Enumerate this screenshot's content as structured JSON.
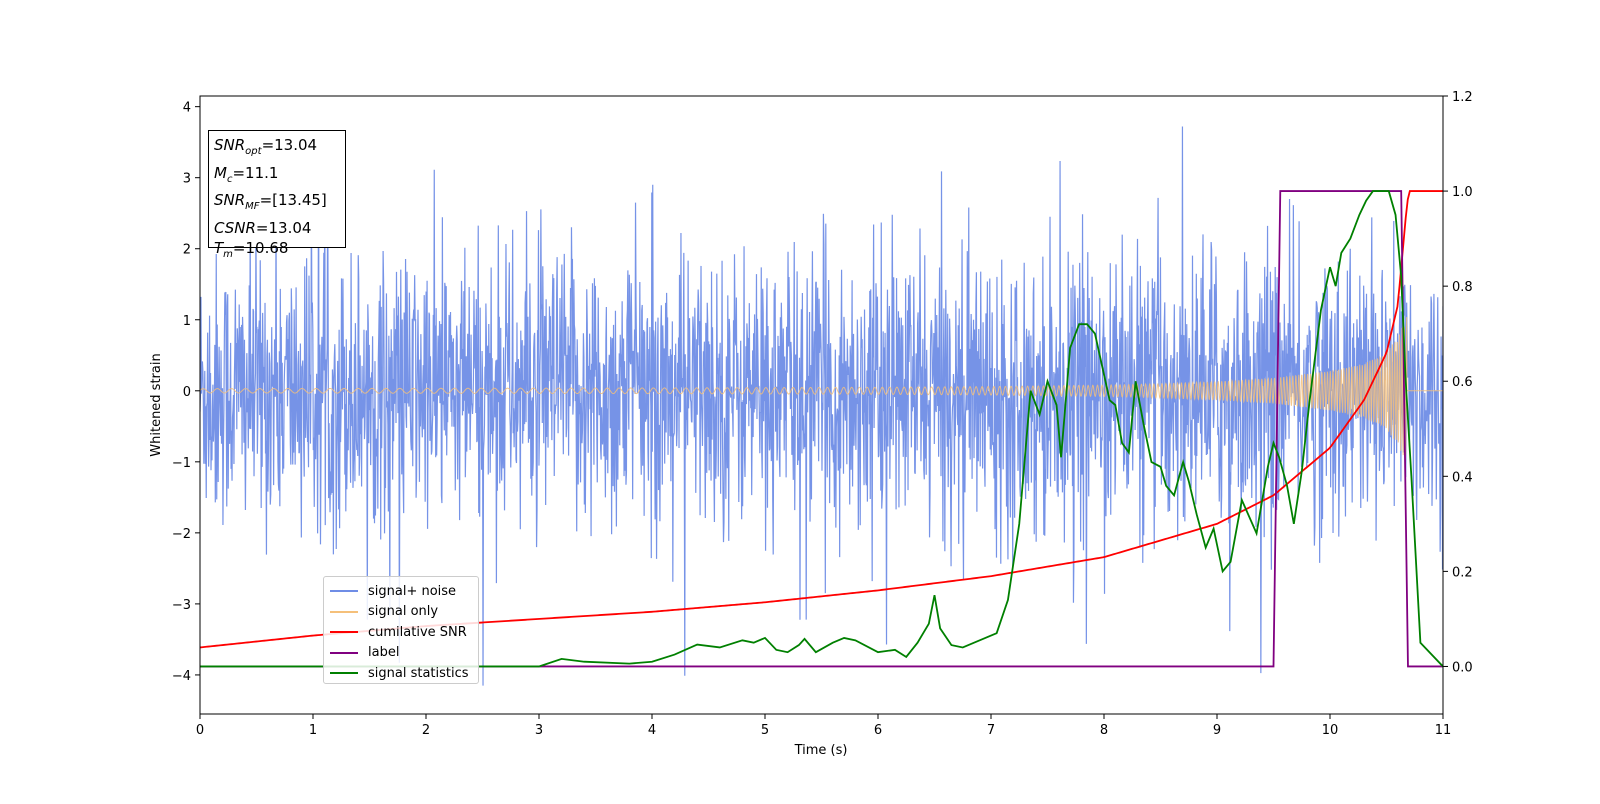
{
  "chart_data": {
    "type": "line",
    "title": "",
    "xlabel": "Time (s)",
    "ylabel": "Whitened strain",
    "xlim": [
      0,
      11
    ],
    "ylim_left": [
      -4.55,
      4.15
    ],
    "ylim_right": [
      -0.1,
      1.2
    ],
    "x_ticks": [
      "0",
      "1",
      "2",
      "3",
      "4",
      "5",
      "6",
      "7",
      "8",
      "9",
      "10",
      "11"
    ],
    "y_ticks_left": [
      "4",
      "3",
      "2",
      "1",
      "0",
      "−1",
      "−2",
      "−3",
      "−4"
    ],
    "y_ticks_right": [
      "1.2",
      "1.0",
      "0.8",
      "0.6",
      "0.4",
      "0.2",
      "0.0"
    ],
    "grid": false,
    "legend_position": "lower-left",
    "series": [
      {
        "name": "signal+ noise",
        "color": "#6f8de6",
        "axis": "left",
        "description_values": {
          "noise_sigma": 0.95,
          "peak_max": 3.72,
          "peak_min": -4.15
        }
      },
      {
        "name": "signal only",
        "color": "#f5c07a",
        "axis": "left",
        "x": [
          0,
          2,
          4,
          6,
          7,
          8,
          8.5,
          9,
          9.5,
          10,
          10.3,
          10.5,
          10.6,
          10.68,
          11
        ],
        "envelope": [
          0.03,
          0.035,
          0.04,
          0.05,
          0.06,
          0.08,
          0.1,
          0.13,
          0.18,
          0.28,
          0.38,
          0.55,
          0.75,
          1.05,
          0.0
        ]
      },
      {
        "name": "cumilative SNR",
        "color": "#ff0000",
        "axis": "right",
        "x": [
          0,
          1,
          2,
          3,
          4,
          5,
          6,
          7,
          7.5,
          8,
          8.5,
          9,
          9.5,
          10,
          10.3,
          10.5,
          10.6,
          10.68,
          10.7,
          11
        ],
        "y": [
          0.04,
          0.065,
          0.085,
          0.1,
          0.115,
          0.135,
          0.16,
          0.19,
          0.21,
          0.23,
          0.265,
          0.3,
          0.36,
          0.46,
          0.56,
          0.66,
          0.76,
          0.97,
          1.0,
          1.0
        ]
      },
      {
        "name": "label",
        "color": "#800080",
        "axis": "right",
        "x": [
          0,
          9.5,
          9.56,
          10.63,
          10.69,
          11
        ],
        "y": [
          0.0,
          0.0,
          1.0,
          1.0,
          0.0,
          0.0
        ]
      },
      {
        "name": "signal statistics",
        "color": "#008000",
        "axis": "right",
        "x": [
          0,
          1,
          2,
          3,
          3.2,
          3.4,
          3.8,
          4.0,
          4.2,
          4.4,
          4.6,
          4.8,
          4.9,
          5.0,
          5.1,
          5.2,
          5.3,
          5.35,
          5.45,
          5.6,
          5.7,
          5.8,
          6.0,
          6.15,
          6.25,
          6.35,
          6.45,
          6.5,
          6.55,
          6.65,
          6.75,
          6.85,
          6.95,
          7.05,
          7.15,
          7.25,
          7.35,
          7.43,
          7.5,
          7.58,
          7.62,
          7.7,
          7.78,
          7.85,
          7.92,
          8.05,
          8.1,
          8.16,
          8.22,
          8.28,
          8.35,
          8.42,
          8.5,
          8.55,
          8.62,
          8.7,
          8.75,
          8.82,
          8.9,
          8.97,
          9.05,
          9.12,
          9.22,
          9.35,
          9.45,
          9.5,
          9.55,
          9.62,
          9.68,
          9.75,
          9.82,
          9.92,
          10.0,
          10.05,
          10.1,
          10.18,
          10.26,
          10.32,
          10.38,
          10.45,
          10.52,
          10.58,
          10.63,
          10.67,
          10.72,
          10.8,
          11
        ],
        "y": [
          0.0,
          0.0,
          0.0,
          0.0,
          0.016,
          0.01,
          0.006,
          0.01,
          0.025,
          0.046,
          0.04,
          0.055,
          0.05,
          0.06,
          0.035,
          0.03,
          0.045,
          0.058,
          0.03,
          0.05,
          0.06,
          0.055,
          0.03,
          0.035,
          0.02,
          0.05,
          0.09,
          0.15,
          0.08,
          0.045,
          0.04,
          0.05,
          0.06,
          0.07,
          0.14,
          0.3,
          0.58,
          0.53,
          0.6,
          0.55,
          0.44,
          0.67,
          0.72,
          0.72,
          0.7,
          0.56,
          0.55,
          0.47,
          0.45,
          0.6,
          0.51,
          0.43,
          0.42,
          0.38,
          0.36,
          0.43,
          0.39,
          0.32,
          0.25,
          0.29,
          0.2,
          0.22,
          0.35,
          0.28,
          0.42,
          0.47,
          0.44,
          0.38,
          0.3,
          0.41,
          0.56,
          0.75,
          0.84,
          0.8,
          0.87,
          0.9,
          0.95,
          0.98,
          1.0,
          1.0,
          1.0,
          0.95,
          0.82,
          0.6,
          0.4,
          0.05,
          0.0
        ]
      }
    ],
    "stats_box": {
      "snr_opt_sym": "SNR",
      "snr_opt_sub": "opt",
      "snr_opt_val": "=13.04",
      "mc_sym": "M",
      "mc_sub": "c",
      "mc_val": "=11.1",
      "snr_mf_sym": "SNR",
      "snr_mf_sub": "MF",
      "snr_mf_val": "=[13.45]",
      "csnr_sym": "CSNR",
      "csnr_val": "=13.04",
      "tm_sym": "T",
      "tm_sub": "m",
      "tm_val": "=10.68"
    }
  }
}
